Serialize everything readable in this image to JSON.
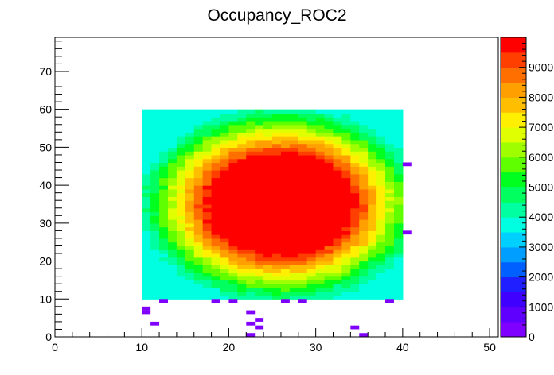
{
  "chart_data": {
    "type": "heatmap",
    "title": "Occupancy_ROC2",
    "xlabel": "",
    "ylabel": "",
    "xlim": [
      0,
      51
    ],
    "ylim": [
      0,
      79
    ],
    "x_ticks": [
      "0",
      "10",
      "20",
      "30",
      "40",
      "50"
    ],
    "y_ticks": [
      "0",
      "10",
      "20",
      "30",
      "40",
      "50",
      "60",
      "70"
    ],
    "z_ticks": [
      "0",
      "1000",
      "2000",
      "3000",
      "4000",
      "5000",
      "6000",
      "7000",
      "8000",
      "9000"
    ],
    "zlim": [
      0,
      10000
    ],
    "grid": false,
    "colorbar": "right",
    "main_block": {
      "x_range": [
        10,
        40
      ],
      "y_range": [
        10,
        60
      ],
      "center": [
        26,
        35
      ],
      "peak_value": 10000,
      "edge_value": 4000,
      "corner_value": 3500,
      "shape": "radial falloff, saturated red core spanning roughly x 21-33, y 24-46"
    },
    "sparse_bins": [
      {
        "x": 12,
        "y": 9,
        "value": 300
      },
      {
        "x": 18,
        "y": 9,
        "value": 300
      },
      {
        "x": 20,
        "y": 9,
        "value": 300
      },
      {
        "x": 26,
        "y": 9,
        "value": 300
      },
      {
        "x": 28,
        "y": 9,
        "value": 300
      },
      {
        "x": 38,
        "y": 9,
        "value": 300
      },
      {
        "x": 40,
        "y": 45,
        "value": 300
      },
      {
        "x": 40,
        "y": 27,
        "value": 300
      },
      {
        "x": 10,
        "y": 7,
        "value": 300
      },
      {
        "x": 10,
        "y": 6,
        "value": 300
      },
      {
        "x": 11,
        "y": 3,
        "value": 300
      },
      {
        "x": 22,
        "y": 6,
        "value": 300
      },
      {
        "x": 23,
        "y": 4,
        "value": 300
      },
      {
        "x": 22,
        "y": 3,
        "value": 300
      },
      {
        "x": 23,
        "y": 2,
        "value": 300
      },
      {
        "x": 34,
        "y": 2,
        "value": 300
      },
      {
        "x": 22,
        "y": 0,
        "value": 300
      },
      {
        "x": 35,
        "y": 0,
        "value": 300
      }
    ]
  },
  "palette": {
    "colors": [
      "#7f00ff",
      "#5f00ff",
      "#3f00ff",
      "#1f1fff",
      "#005fff",
      "#009fff",
      "#00d0ff",
      "#00ffe0",
      "#00ffa0",
      "#00ff5f",
      "#00ff1f",
      "#5fff00",
      "#9fff00",
      "#e0ff00",
      "#ffef00",
      "#ffbf00",
      "#ff9f00",
      "#ff6f00",
      "#ff3f00",
      "#ff0000"
    ]
  }
}
